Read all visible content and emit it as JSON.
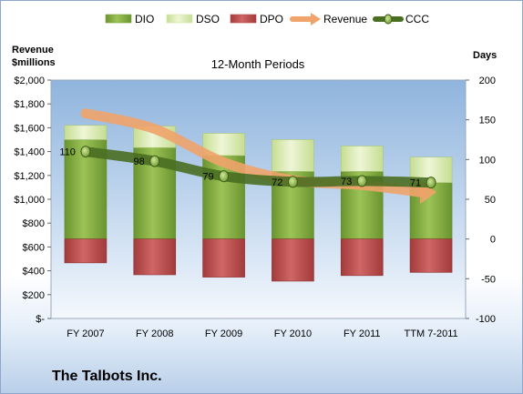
{
  "company": "The Talbots Inc.",
  "chart_data": {
    "type": "bar",
    "title": "12-Month Periods",
    "left_axis": {
      "label_line1": "Revenue",
      "label_line2": "$millions",
      "range": [
        0,
        2000
      ],
      "ticks": [
        0,
        200,
        400,
        600,
        800,
        1000,
        1200,
        1400,
        1600,
        1800,
        2000
      ],
      "tick_labels": [
        "$-",
        "$200",
        "$400",
        "$600",
        "$800",
        "$1,000",
        "$1,200",
        "$1,400",
        "$1,600",
        "$1,800",
        "$2,000"
      ]
    },
    "right_axis": {
      "label": "Days",
      "range": [
        -100,
        200
      ],
      "ticks": [
        -100,
        -50,
        0,
        50,
        100,
        150,
        200
      ],
      "tick_labels": [
        "-100",
        "-50",
        "0",
        "50",
        "100",
        "150",
        "200"
      ]
    },
    "categories": [
      "FY 2007",
      "FY 2008",
      "FY 2009",
      "FY 2010",
      "FY 2011",
      "TTM 7-2011"
    ],
    "legend": [
      "DIO",
      "DSO",
      "DPO",
      "Revenue",
      "CCC"
    ],
    "legend_position": "top",
    "grid": false,
    "series": [
      {
        "name": "DIO",
        "axis": "right",
        "kind": "bar-stack-positive",
        "color": "#7aa33a",
        "values": [
          125,
          115,
          105,
          85,
          85,
          71
        ]
      },
      {
        "name": "DSO",
        "axis": "right",
        "kind": "bar-stack-positive",
        "color": "#d2e6a7",
        "values": [
          18,
          27,
          28,
          40,
          32,
          32
        ]
      },
      {
        "name": "DPO",
        "axis": "right",
        "kind": "bar-negative",
        "color": "#b84a4a",
        "values": [
          -30,
          -45,
          -48,
          -53,
          -46,
          -42
        ]
      },
      {
        "name": "Revenue",
        "axis": "left",
        "kind": "line-arrow",
        "color": "#f0a36a",
        "values": [
          1720,
          1590,
          1310,
          1160,
          1120,
          1060
        ]
      },
      {
        "name": "CCC",
        "axis": "right",
        "kind": "line-markers",
        "color": "#4a6e22",
        "values": [
          110,
          98,
          79,
          72,
          73,
          71
        ]
      }
    ],
    "data_labels": [
      "110",
      "98",
      "79",
      "72",
      "73",
      "71"
    ]
  }
}
